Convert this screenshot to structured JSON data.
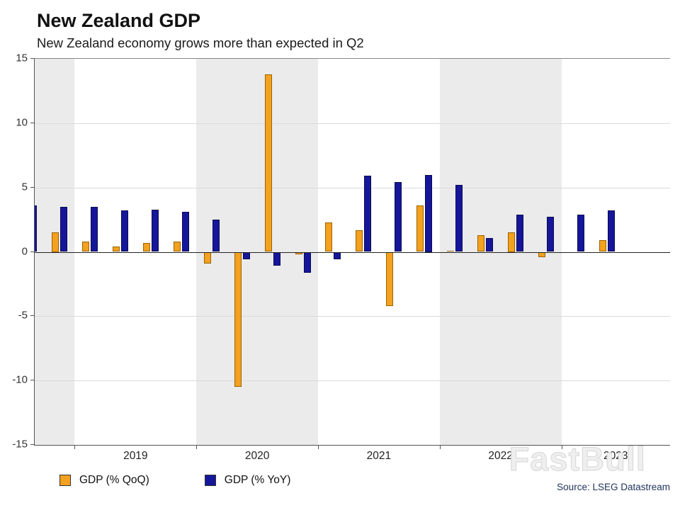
{
  "chart_data": {
    "type": "bar",
    "title": "New Zealand GDP",
    "subtitle": "New Zealand economy grows more than expected in Q2",
    "watermark": "FastBull",
    "source": "Source: LSEG Datastream",
    "ylim": [
      -15,
      15
    ],
    "yticks": [
      15,
      10,
      5,
      0,
      -5,
      -10,
      -15
    ],
    "grid": true,
    "legend_position": "bottom-left",
    "band_color": "#ebebeb",
    "shaded_years": [
      "2018",
      "2020",
      "2022"
    ],
    "x_year_labels": [
      "2019",
      "2020",
      "2021",
      "2022",
      "2023"
    ],
    "categories": [
      "2018 Q3",
      "2018 Q4",
      "2019 Q1",
      "2019 Q2",
      "2019 Q3",
      "2019 Q4",
      "2020 Q1",
      "2020 Q2",
      "2020 Q3",
      "2020 Q4",
      "2021 Q1",
      "2021 Q2",
      "2021 Q3",
      "2021 Q4",
      "2022 Q1",
      "2022 Q2",
      "2022 Q3",
      "2022 Q4",
      "2023 Q1",
      "2023 Q2"
    ],
    "series": [
      {
        "name": "GDP (% QoQ)",
        "color": "#F3A11F",
        "stroke": "#9a6300",
        "values": [
          null,
          1.5,
          0.8,
          0.4,
          0.7,
          0.8,
          -0.9,
          -10.5,
          13.8,
          -0.2,
          2.3,
          1.7,
          -4.2,
          3.6,
          0.1,
          1.3,
          1.5,
          -0.4,
          0.0,
          0.9
        ]
      },
      {
        "name": "GDP (% YoY)",
        "color": "#16169A",
        "stroke": "#0a0a55",
        "values": [
          3.6,
          3.5,
          3.5,
          3.2,
          3.3,
          3.1,
          2.5,
          -0.6,
          -1.1,
          -1.6,
          -0.6,
          5.9,
          5.4,
          6.0,
          5.2,
          1.1,
          2.9,
          2.7,
          2.9,
          3.2
        ]
      }
    ]
  }
}
